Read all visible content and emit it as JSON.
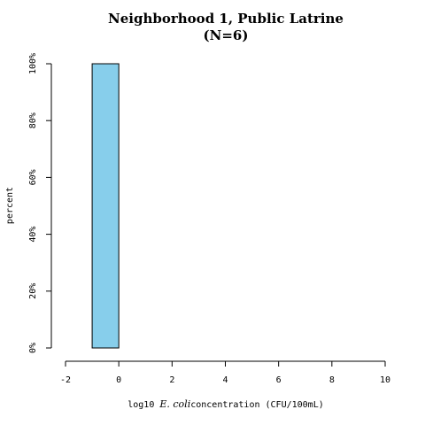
{
  "chart_data": {
    "type": "bar",
    "title": "Neighborhood 1, Public Latrine",
    "subtitle": "(N=6)",
    "xlabel": {
      "prefix": "log10 ",
      "italic": "E. coli",
      "suffix": "concentration (CFU/100mL)"
    },
    "ylabel": "percent",
    "xlim": [
      -2,
      10
    ],
    "ylim": [
      0,
      100
    ],
    "xticks": [
      -2,
      0,
      2,
      4,
      6,
      8,
      10
    ],
    "yticks": [
      0,
      20,
      40,
      60,
      80,
      100
    ],
    "ytick_suffix": "%",
    "bins": [
      {
        "start": -1,
        "end": 0,
        "value": 100
      },
      {
        "start": 0,
        "end": 1,
        "value": 0
      },
      {
        "start": 1,
        "end": 2,
        "value": 0
      },
      {
        "start": 2,
        "end": 3,
        "value": 0
      },
      {
        "start": 3,
        "end": 4,
        "value": 0
      },
      {
        "start": 4,
        "end": 5,
        "value": 0
      },
      {
        "start": 5,
        "end": 6,
        "value": 0
      },
      {
        "start": 6,
        "end": 7,
        "value": 0
      },
      {
        "start": 7,
        "end": 8,
        "value": 0
      },
      {
        "start": 8,
        "end": 9,
        "value": 0
      },
      {
        "start": 9,
        "end": 10,
        "value": 0
      }
    ],
    "bar_color": "#87CEEB",
    "bar_stroke": "#000000",
    "grid": false,
    "legend": "none"
  }
}
